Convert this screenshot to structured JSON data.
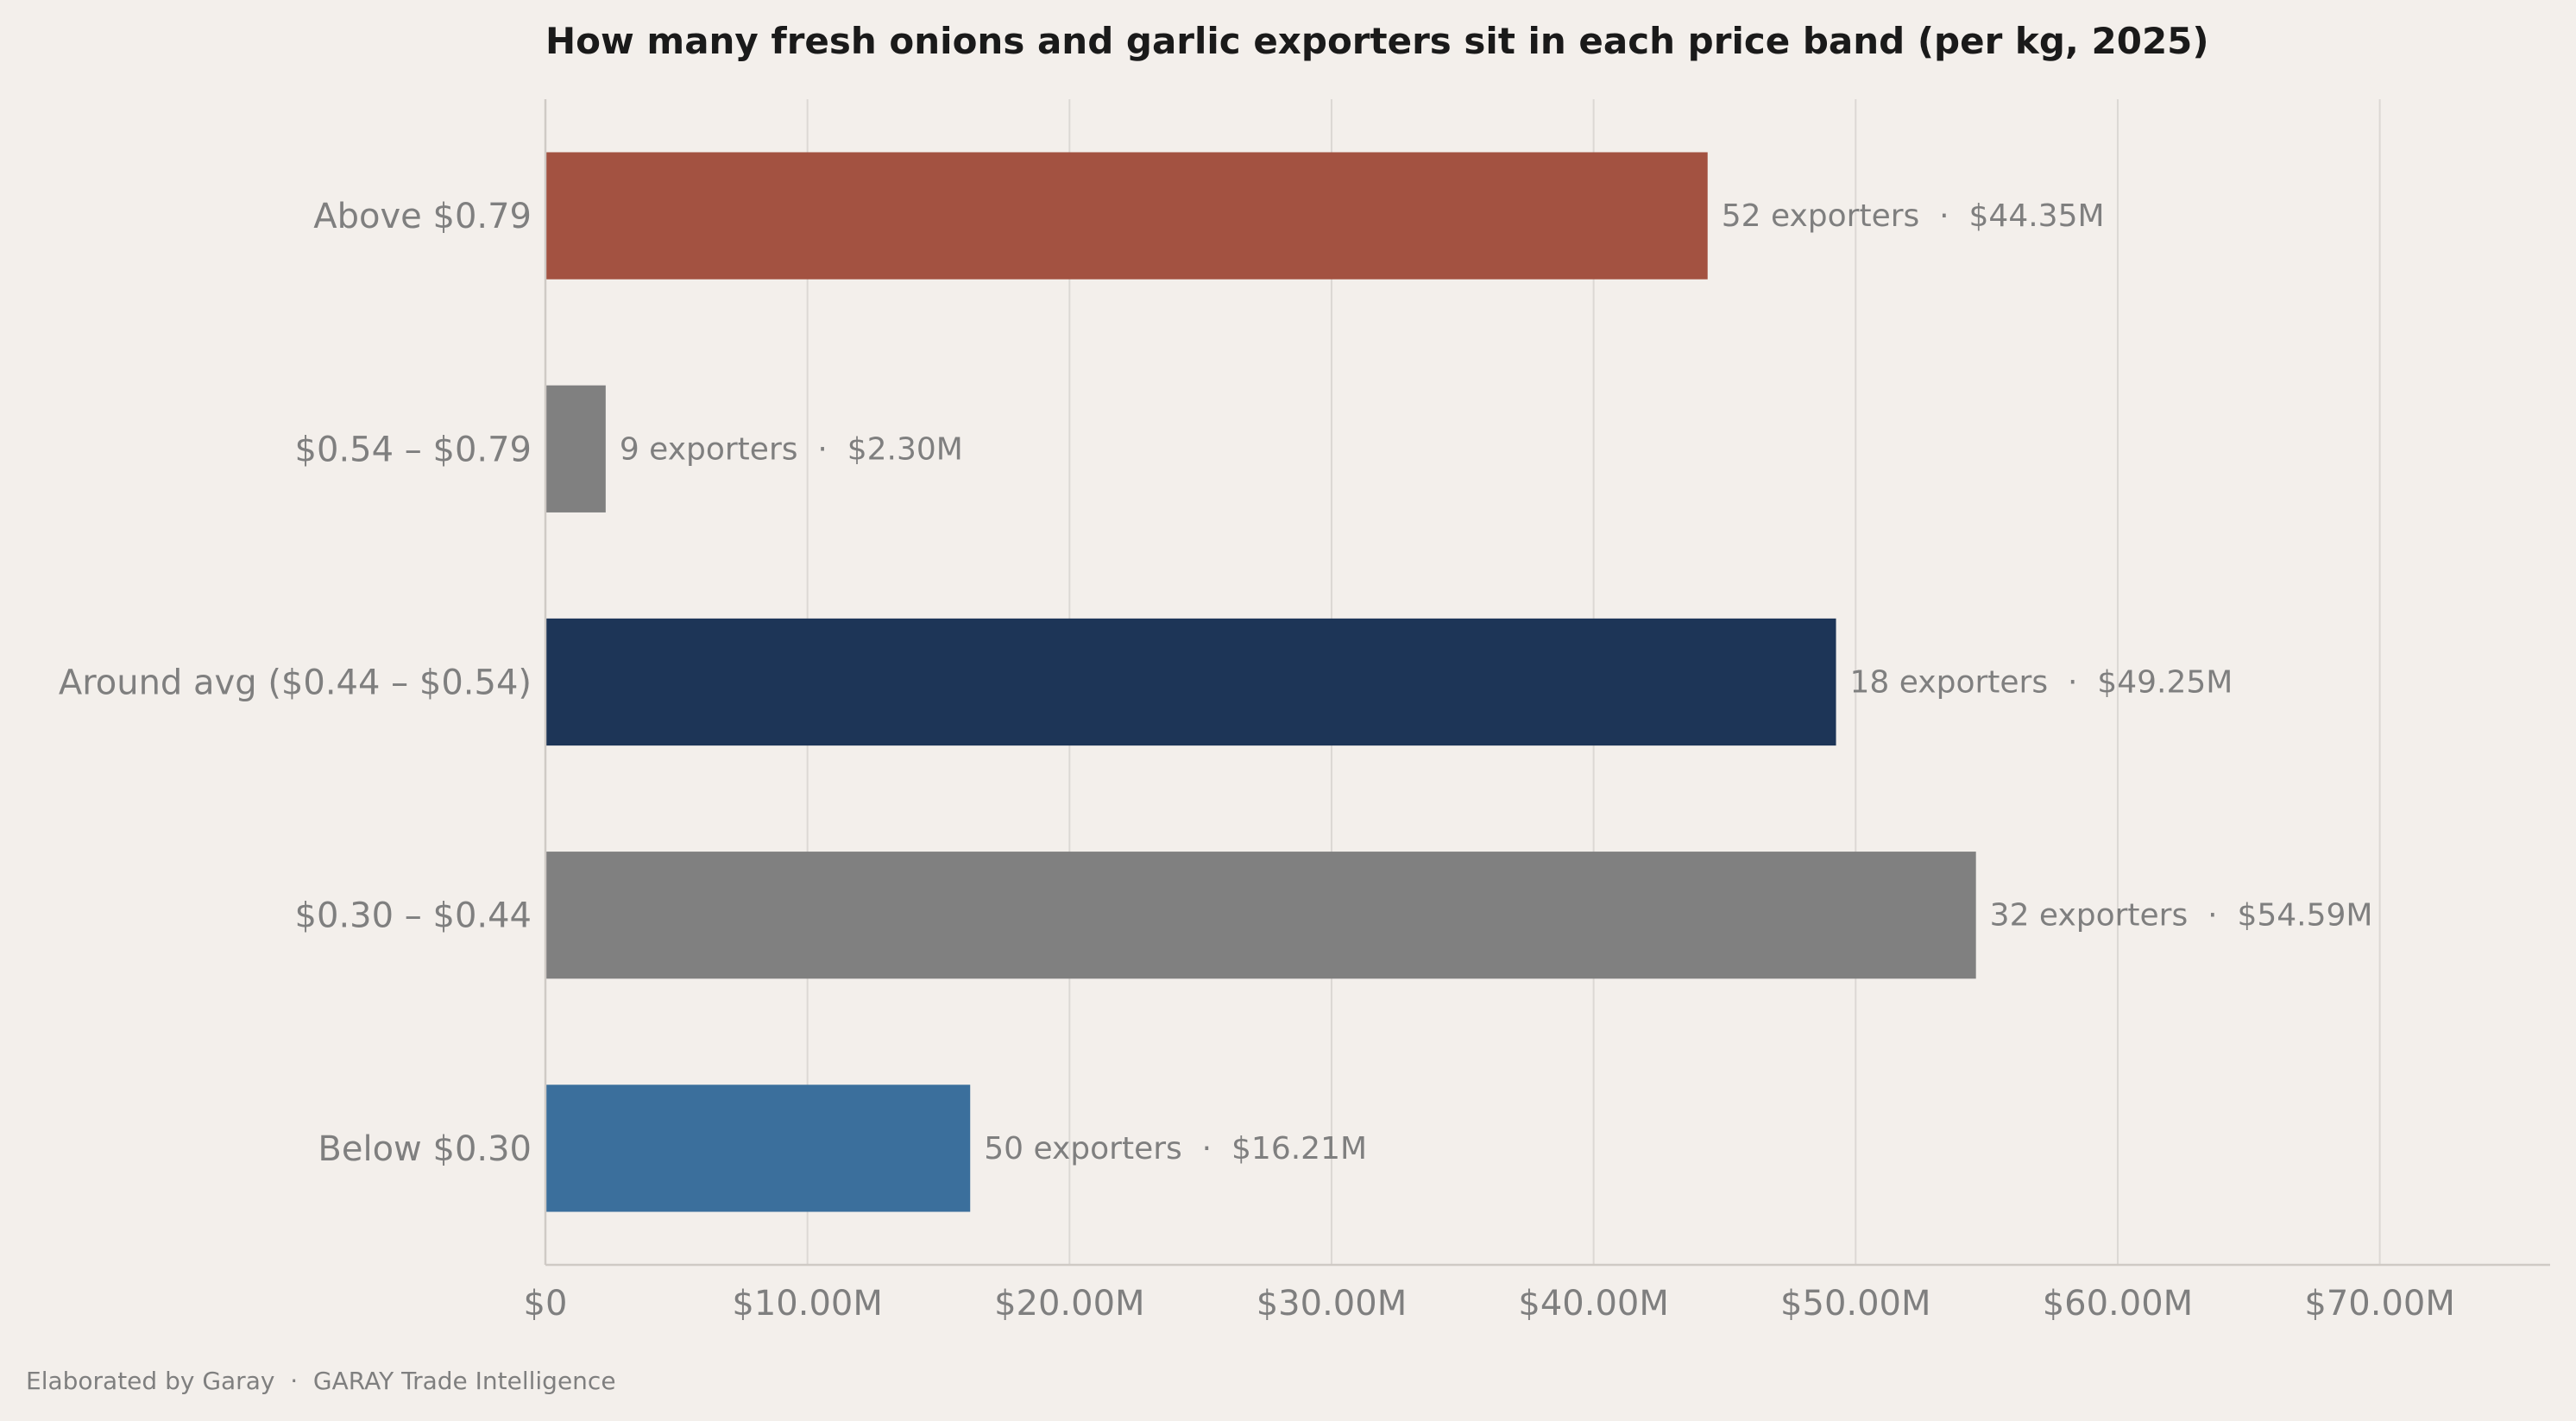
{
  "chart_data": {
    "type": "bar",
    "orientation": "horizontal",
    "title": "How many fresh onions and garlic exporters sit in each price band (per kg, 2025)",
    "xlabel": "",
    "ylabel": "",
    "xlim": [
      0,
      76.5
    ],
    "grid": "vertical",
    "legend": "none",
    "x_ticks": [
      {
        "value": 0,
        "label": "$0"
      },
      {
        "value": 10,
        "label": "$10.00M"
      },
      {
        "value": 20,
        "label": "$20.00M"
      },
      {
        "value": 30,
        "label": "$30.00M"
      },
      {
        "value": 40,
        "label": "$40.00M"
      },
      {
        "value": 50,
        "label": "$50.00M"
      },
      {
        "value": 60,
        "label": "$60.00M"
      },
      {
        "value": 70,
        "label": "$70.00M"
      }
    ],
    "bars": [
      {
        "category": "Above $0.79",
        "value": 44.35,
        "exporters": 52,
        "label": "52 exporters  ·  $44.35M",
        "color": "#a35241"
      },
      {
        "category": "$0.54 – $0.79",
        "value": 2.3,
        "exporters": 9,
        "label": "9 exporters  ·  $2.30M",
        "color": "#808080"
      },
      {
        "category": "Around avg ($0.44 – $0.54)",
        "value": 49.25,
        "exporters": 18,
        "label": "18 exporters  ·  $49.25M",
        "color": "#1d3557"
      },
      {
        "category": "$0.30 – $0.44",
        "value": 54.59,
        "exporters": 32,
        "label": "32 exporters  ·  $54.59M",
        "color": "#808080"
      },
      {
        "category": "Below $0.30",
        "value": 16.21,
        "exporters": 50,
        "label": "50 exporters  ·  $16.21M",
        "color": "#3b6f9c"
      }
    ]
  },
  "footer": {
    "note": "Elaborated by Garay  ·  GARAY Trade Intelligence"
  }
}
